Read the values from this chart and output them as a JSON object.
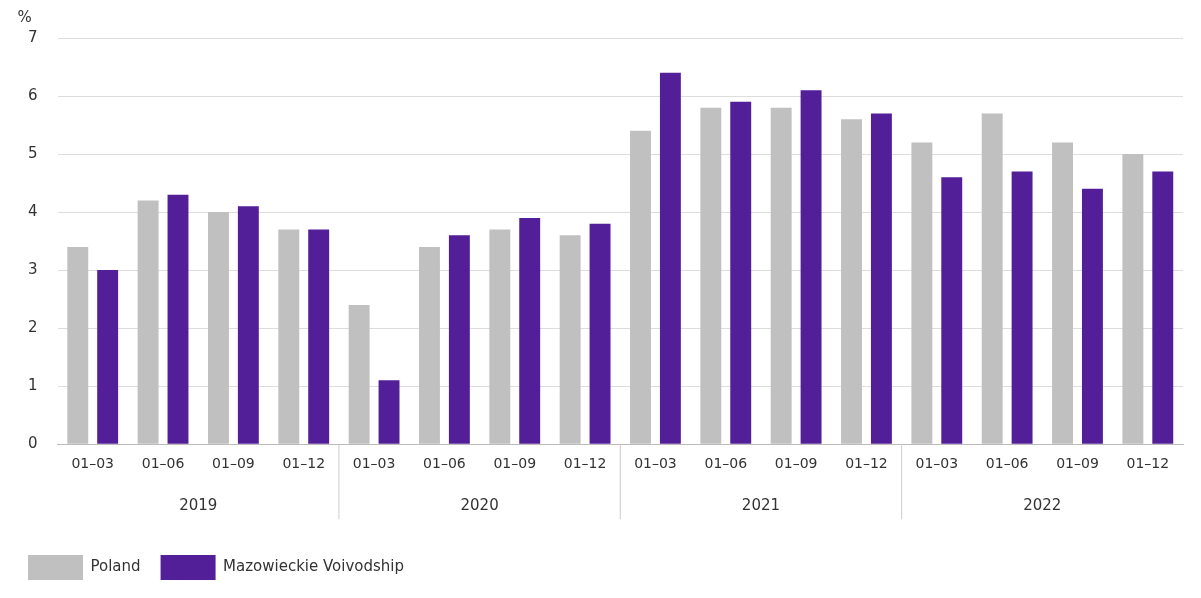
{
  "chart_data": {
    "type": "bar",
    "ylabel": "%",
    "categories": [
      "01–03",
      "01–06",
      "01–09",
      "01–12",
      "01–03",
      "01–06",
      "01–09",
      "01–12",
      "01–03",
      "01–06",
      "01–09",
      "01–12",
      "01–03",
      "01–06",
      "01–09",
      "01–12"
    ],
    "series": [
      {
        "name": "Poland",
        "color": "#c0c0c0",
        "values": [
          3.4,
          4.2,
          4.0,
          3.7,
          2.4,
          3.4,
          3.7,
          3.6,
          5.4,
          5.8,
          5.8,
          5.6,
          5.2,
          5.7,
          5.2,
          5.0
        ]
      },
      {
        "name": "Mazowieckie Voivodship",
        "color": "#531f99",
        "values": [
          3.0,
          4.3,
          4.1,
          3.7,
          1.1,
          3.6,
          3.9,
          3.8,
          6.4,
          5.9,
          6.1,
          5.7,
          4.6,
          4.7,
          4.4,
          4.7
        ]
      }
    ],
    "annotations": [
      "2019",
      "2020",
      "2021",
      "2022"
    ],
    "ylim": [
      0,
      7
    ],
    "yticks": [
      0,
      1,
      2,
      3,
      4,
      5,
      6,
      7
    ],
    "grid": "y",
    "legend": "bottom left"
  }
}
